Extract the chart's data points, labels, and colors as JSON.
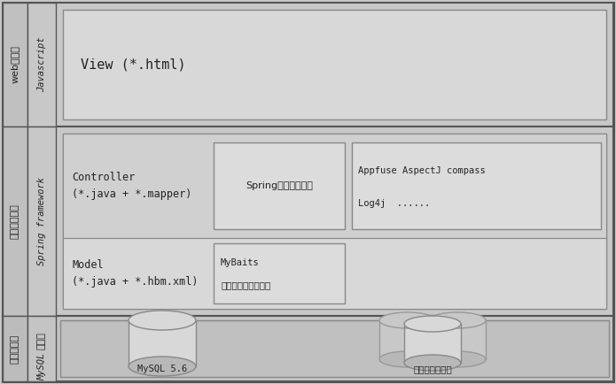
{
  "bg_color": "#c8c8c8",
  "text_color": "#222222",
  "layer1_label_vert": "web浏览器",
  "layer1_sublabel_vert": "Javascript",
  "layer1_content": "View (*.html)",
  "layer2_label_vert": "服务器端应用",
  "layer2_sublabel_vert": "Spring framework",
  "layer2_ctrl_label": "Controller\n(*.java + *.mapper)",
  "layer2_box1_line1": "Spring控制业务流转",
  "layer2_box2_line1": "Appfuse AspectJ compass",
  "layer2_box2_line2": "Log4j  ......",
  "layer2_model_label": "Model\n(*.java + *.hbm.xml)",
  "layer2_mybaits_title": "MyBaits",
  "layer2_mybaits_body": "负责持久层数据支持",
  "layer3_label_vert": "持久层数据",
  "layer3_sublabel_vert": "数据库",
  "layer3_subsubabel_vert": "MySQL",
  "layer3_db1_label": "MySQL 5.6",
  "layer3_db2_label": "其他对接数据库"
}
